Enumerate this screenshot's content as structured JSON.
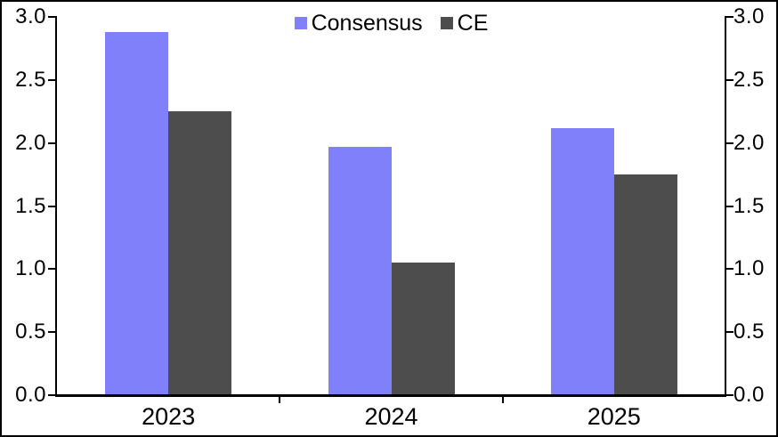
{
  "chart_data": {
    "type": "bar",
    "categories": [
      "2023",
      "2024",
      "2025"
    ],
    "series": [
      {
        "name": "Consensus",
        "color": "#8080FA",
        "values": [
          2.88,
          1.97,
          2.12
        ]
      },
      {
        "name": "CE",
        "color": "#4D4D4D",
        "values": [
          2.25,
          1.05,
          1.75
        ]
      }
    ],
    "ylim": [
      0.0,
      3.0
    ],
    "ytick_step": 0.5,
    "ytick_labels": [
      "0.0",
      "0.5",
      "1.0",
      "1.5",
      "2.0",
      "2.5",
      "3.0"
    ],
    "y_axis_sides": [
      "left",
      "right"
    ],
    "legend_position": "top-center",
    "grid": false,
    "axis_color": "#000000",
    "frame_color": "#000000",
    "background_color": "#FFFFFF"
  }
}
